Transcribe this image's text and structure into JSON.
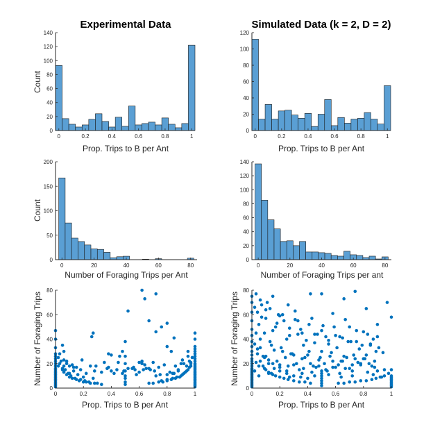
{
  "chart_data": [
    {
      "id": "exp-hist-prop",
      "type": "bar",
      "title": "Experimental Data",
      "xlabel": "Prop. Trips to B per Ant",
      "ylabel": "Count",
      "xlim": [
        -0.025,
        1.025
      ],
      "ylim": [
        0,
        140
      ],
      "xticks": [
        0,
        0.2,
        0.4,
        0.6,
        0.8,
        1
      ],
      "xtick_labels": [
        "0",
        "0.2",
        "0.4",
        "0.6",
        "0.8",
        "1"
      ],
      "yticks": [
        0,
        20,
        40,
        60,
        80,
        100,
        120,
        140
      ],
      "bin_width": 0.05,
      "bin_start": -0.025,
      "values": [
        93,
        17,
        9,
        5,
        8,
        16,
        24,
        13,
        5,
        19,
        6,
        35,
        8,
        10,
        12,
        8,
        18,
        9,
        4,
        10,
        122
      ],
      "color": "#5A9FD4"
    },
    {
      "id": "sim-hist-prop",
      "type": "bar",
      "title": "Simulated Data (k = 2, D = 2)",
      "xlabel": "Prop. Trips to B per Ant",
      "ylabel": "",
      "xlim": [
        -0.025,
        1.025
      ],
      "ylim": [
        0,
        120
      ],
      "xticks": [
        0,
        0.2,
        0.4,
        0.6,
        0.8,
        1
      ],
      "xtick_labels": [
        "0",
        "0.2",
        "0.4",
        "0.6",
        "0.8",
        "1"
      ],
      "yticks": [
        0,
        20,
        40,
        60,
        80,
        100,
        120
      ],
      "bin_width": 0.05,
      "bin_start": -0.025,
      "values": [
        112,
        14,
        32,
        14,
        24,
        25,
        19,
        15,
        21,
        5,
        20,
        38,
        6,
        16,
        9,
        14,
        15,
        22,
        14,
        8,
        55
      ],
      "color": "#5A9FD4"
    },
    {
      "id": "exp-hist-trips",
      "type": "bar",
      "title": "",
      "xlabel": "Number of Foraging Trips per Ant",
      "ylabel": "Count",
      "xlim": [
        -4,
        84
      ],
      "ylim": [
        0,
        200
      ],
      "xticks": [
        0,
        20,
        40,
        60,
        80
      ],
      "xtick_labels": [
        "0",
        "20",
        "40",
        "60",
        "80"
      ],
      "yticks": [
        0,
        50,
        100,
        150,
        200
      ],
      "bin_width": 4,
      "bin_start": -2,
      "values": [
        167,
        75,
        44,
        37,
        30,
        22,
        21,
        15,
        4,
        6,
        7,
        0,
        0,
        1,
        0,
        2,
        0,
        0,
        0,
        0,
        3
      ],
      "color": "#5A9FD4"
    },
    {
      "id": "sim-hist-trips",
      "type": "bar",
      "title": "",
      "xlabel": "Number of Foraging Trips per ant",
      "ylabel": "",
      "xlim": [
        -4,
        84
      ],
      "ylim": [
        0,
        140
      ],
      "xticks": [
        0,
        20,
        40,
        60,
        80
      ],
      "xtick_labels": [
        "0",
        "20",
        "40",
        "60",
        "80"
      ],
      "yticks": [
        0,
        20,
        40,
        60,
        80,
        100,
        120,
        140
      ],
      "bin_width": 4,
      "bin_start": -2,
      "values": [
        137,
        85,
        57,
        44,
        26,
        27,
        20,
        26,
        11,
        11,
        10,
        9,
        6,
        5,
        12,
        7,
        6,
        3,
        5,
        1,
        4
      ],
      "color": "#5A9FD4"
    },
    {
      "id": "exp-scatter",
      "type": "scatter",
      "title": "",
      "xlabel": "Prop. Trips to B per Ant",
      "ylabel": "Number of Foraging Trips",
      "xlim": [
        0,
        1
      ],
      "ylim": [
        0,
        80
      ],
      "xticks": [
        0,
        0.2,
        0.4,
        0.6,
        0.8,
        1
      ],
      "xtick_labels": [
        "0",
        "0.2",
        "0.4",
        "0.6",
        "0.8",
        "1"
      ],
      "yticks": [
        0,
        20,
        40,
        60,
        80
      ],
      "color": "#0072BD",
      "x": [
        0,
        0,
        0,
        0,
        0,
        0,
        0,
        0,
        0,
        0,
        0,
        0,
        0,
        0,
        0,
        0,
        0,
        0,
        0,
        0,
        0,
        0,
        0,
        0,
        0,
        1,
        1,
        1,
        1,
        1,
        1,
        1,
        1,
        1,
        1,
        1,
        1,
        1,
        1,
        1,
        1,
        1,
        1,
        1,
        1,
        1,
        1,
        1,
        1,
        1,
        1,
        1,
        1,
        1,
        0.5,
        0.5,
        0.5,
        0.5,
        0.5,
        0.5,
        0.5,
        0.5,
        0.02,
        0.03,
        0.05,
        0.06,
        0.08,
        0.1,
        0.12,
        0.15,
        0.17,
        0.2,
        0.22,
        0.25,
        0.3,
        0.33,
        0.03,
        0.04,
        0.06,
        0.07,
        0.09,
        0.11,
        0.14,
        0.18,
        0.21,
        0.24,
        0.28,
        0.05,
        0.08,
        0.1,
        0.13,
        0.16,
        0.2,
        0.98,
        0.97,
        0.95,
        0.93,
        0.91,
        0.89,
        0.86,
        0.83,
        0.8,
        0.77,
        0.74,
        0.7,
        0.67,
        0.97,
        0.96,
        0.94,
        0.92,
        0.9,
        0.87,
        0.84,
        0.8,
        0.76,
        0.95,
        0.92,
        0.88,
        0.84,
        0.02,
        0.05,
        0.06,
        0.1,
        0.13,
        0.18,
        0.22,
        0.27,
        0.29,
        0.33,
        0.37,
        0.4,
        0.42,
        0.45,
        0.49,
        0.52,
        0.56,
        0.58,
        0.6,
        0.62,
        0.65,
        0.68,
        0.71,
        0.74,
        0.78,
        0.82,
        0.86,
        0.9,
        0.94,
        0.96,
        0.08,
        0.15,
        0.25,
        0.35,
        0.44,
        0.55,
        0.64,
        0.72,
        0.8,
        0.88,
        0.06,
        0.12,
        0.19,
        0.28,
        0.38,
        0.48,
        0.57,
        0.67,
        0.75,
        0.85,
        0.26,
        0.27,
        0.38,
        0.4,
        0.46,
        0.48,
        0.52,
        0.6,
        0.62,
        0.63,
        0.7,
        0.72,
        0.76,
        0.8,
        0.83,
        0.85,
        0.91,
        0.95,
        0.97,
        0.62,
        0.64,
        0.67,
        0.72,
        0.8
      ],
      "y": [
        1,
        2,
        3,
        4,
        5,
        6,
        7,
        8,
        9,
        10,
        11,
        12,
        13,
        14,
        15,
        16,
        18,
        20,
        22,
        24,
        26,
        28,
        33,
        40,
        47,
        1,
        2,
        3,
        4,
        5,
        6,
        7,
        8,
        9,
        10,
        11,
        12,
        13,
        14,
        15,
        16,
        17,
        18,
        19,
        20,
        22,
        24,
        26,
        28,
        30,
        32,
        34,
        40,
        45,
        3,
        5,
        8,
        10,
        14,
        20,
        26,
        38,
        25,
        20,
        16,
        13,
        11,
        9,
        8,
        7,
        6,
        5,
        5,
        4,
        4,
        3,
        28,
        22,
        18,
        15,
        12,
        10,
        8,
        7,
        6,
        5,
        4,
        35,
        22,
        18,
        14,
        11,
        9,
        25,
        18,
        15,
        13,
        11,
        9,
        8,
        7,
        6,
        5,
        5,
        4,
        4,
        20,
        17,
        14,
        12,
        10,
        9,
        8,
        7,
        6,
        30,
        20,
        15,
        12,
        18,
        15,
        30,
        12,
        17,
        15,
        12,
        8,
        18,
        13,
        16,
        27,
        12,
        21,
        14,
        16,
        17,
        11,
        13,
        20,
        16,
        15,
        14,
        17,
        19,
        13,
        18,
        20,
        18,
        22,
        20,
        17,
        18,
        21,
        15,
        16,
        19,
        10,
        11,
        14,
        23,
        19,
        23,
        14,
        17,
        12,
        15,
        16,
        11,
        12,
        42,
        45,
        28,
        14,
        26,
        30,
        63,
        21,
        22,
        15,
        21,
        77,
        50,
        34,
        30,
        41,
        23,
        26,
        21,
        80,
        73,
        55,
        46,
        53
      ],
      "_x_src": "read",
      "_y_src": "read"
    },
    {
      "id": "sim-scatter",
      "type": "scatter",
      "title": "",
      "xlabel": "Prop. Trips to B per Ant",
      "ylabel": "Number of Foraging Trips",
      "xlim": [
        0,
        1
      ],
      "ylim": [
        0,
        80
      ],
      "xticks": [
        0,
        0.2,
        0.4,
        0.6,
        0.8,
        1
      ],
      "xtick_labels": [
        "0",
        "0.2",
        "0.4",
        "0.6",
        "0.8",
        "1"
      ],
      "yticks": [
        0,
        20,
        40,
        60,
        80
      ],
      "color": "#0072BD",
      "x": [
        0,
        0,
        0,
        0,
        0,
        0,
        0,
        0,
        0,
        0,
        0,
        0,
        0,
        0,
        0,
        0,
        0,
        0,
        0,
        0,
        0,
        0,
        0,
        0,
        0,
        0,
        0,
        0,
        0,
        0,
        1,
        1,
        1,
        1,
        1,
        1,
        1,
        1,
        1,
        1,
        1,
        1,
        0.5,
        0.5,
        0.5,
        0.5,
        0.5,
        0.5,
        0.5,
        0.02,
        0.04,
        0.06,
        0.08,
        0.1,
        0.12,
        0.14,
        0.17,
        0.2,
        0.23,
        0.26,
        0.3,
        0.34,
        0.38,
        0.42,
        0.03,
        0.06,
        0.09,
        0.12,
        0.16,
        0.2,
        0.25,
        0.3,
        0.35,
        0.4,
        0.98,
        0.95,
        0.92,
        0.89,
        0.86,
        0.82,
        0.78,
        0.74,
        0.7,
        0.66,
        0.62,
        0.04,
        0.06,
        0.1,
        0.14,
        0.18,
        0.22,
        0.26,
        0.3,
        0.34,
        0.38,
        0.42,
        0.46,
        0.5,
        0.54,
        0.58,
        0.62,
        0.66,
        0.7,
        0.74,
        0.78,
        0.82,
        0.86,
        0.9,
        0.94,
        0.05,
        0.09,
        0.13,
        0.17,
        0.21,
        0.25,
        0.29,
        0.33,
        0.37,
        0.41,
        0.45,
        0.49,
        0.53,
        0.57,
        0.61,
        0.65,
        0.69,
        0.73,
        0.77,
        0.81,
        0.85,
        0.89,
        0.02,
        0.07,
        0.11,
        0.15,
        0.19,
        0.23,
        0.27,
        0.31,
        0.35,
        0.39,
        0.43,
        0.47,
        0.51,
        0.55,
        0.59,
        0.63,
        0.67,
        0.71,
        0.75,
        0.79,
        0.83,
        0.87,
        0.91,
        0.03,
        0.08,
        0.12,
        0.16,
        0.2,
        0.24,
        0.28,
        0.32,
        0.36,
        0.4,
        0.44,
        0.48,
        0.52,
        0.56,
        0.6,
        0.64,
        0.68,
        0.72,
        0.76,
        0.8,
        0.84,
        0.88,
        0.04,
        0.07,
        0.1,
        0.13,
        0.18,
        0.22,
        0.27,
        0.31,
        0.36,
        0.41,
        0.45,
        0.5,
        0.55,
        0.6,
        0.65,
        0.7,
        0.75,
        0.8,
        0.85,
        0.9,
        0.02,
        0.05,
        0.09,
        0.12,
        0.15,
        0.2,
        0.25,
        0.3,
        0.37,
        0.43,
        0.48,
        0.53,
        0.58,
        0.63,
        0.67,
        0.72,
        0.78,
        0.83,
        0.88,
        0.95,
        0.03,
        0.06,
        0.1,
        0.15,
        0.2,
        0.26,
        0.33,
        0.42,
        0.5,
        0.58,
        0.66,
        0.74,
        0.82,
        0.9,
        0.97,
        0.05,
        0.15,
        0.27,
        0.36,
        0.45,
        0.55,
        0.64,
        0.72,
        0.87,
        0.93
      ],
      "y": [
        1,
        2,
        3,
        4,
        5,
        6,
        7,
        8,
        9,
        10,
        11,
        12,
        13,
        14,
        15,
        16,
        18,
        20,
        22,
        24,
        27,
        30,
        34,
        38,
        43,
        48,
        55,
        62,
        70,
        75,
        1,
        2,
        3,
        4,
        5,
        6,
        7,
        8,
        9,
        10,
        15,
        58,
        2,
        4,
        6,
        8,
        10,
        12,
        14,
        36,
        28,
        22,
        18,
        15,
        13,
        12,
        10,
        9,
        8,
        7,
        6,
        5,
        5,
        4,
        45,
        33,
        25,
        20,
        16,
        14,
        12,
        10,
        9,
        8,
        12,
        10,
        9,
        8,
        7,
        6,
        6,
        5,
        5,
        4,
        4,
        32,
        40,
        26,
        35,
        22,
        30,
        18,
        27,
        15,
        25,
        20,
        17,
        30,
        14,
        22,
        19,
        26,
        16,
        24,
        20,
        27,
        18,
        14,
        29,
        52,
        45,
        38,
        50,
        33,
        40,
        28,
        44,
        35,
        30,
        37,
        25,
        42,
        29,
        33,
        22,
        38,
        27,
        32,
        24,
        35,
        30,
        66,
        58,
        70,
        47,
        60,
        55,
        43,
        63,
        48,
        39,
        57,
        44,
        51,
        36,
        50,
        42,
        56,
        38,
        47,
        35,
        44,
        40,
        33,
        21,
        26,
        23,
        31,
        19,
        25,
        28,
        20,
        24,
        27,
        18,
        23,
        20,
        26,
        17,
        22,
        25,
        19,
        21,
        24,
        20,
        22,
        62,
        68,
        57,
        65,
        53,
        60,
        49,
        56,
        45,
        52,
        44,
        47,
        39,
        43,
        41,
        50,
        38,
        46,
        36,
        42,
        14,
        18,
        16,
        12,
        20,
        17,
        14,
        19,
        16,
        13,
        18,
        15,
        17,
        12,
        16,
        14,
        19,
        13,
        17,
        15,
        77,
        72,
        64,
        75,
        59,
        68,
        55,
        77,
        77,
        61,
        73,
        79,
        65,
        52,
        70,
        10,
        11,
        9,
        12,
        10,
        11,
        9,
        10,
        11,
        9
      ],
      "_x_src": "read",
      "_y_src": "read"
    }
  ]
}
